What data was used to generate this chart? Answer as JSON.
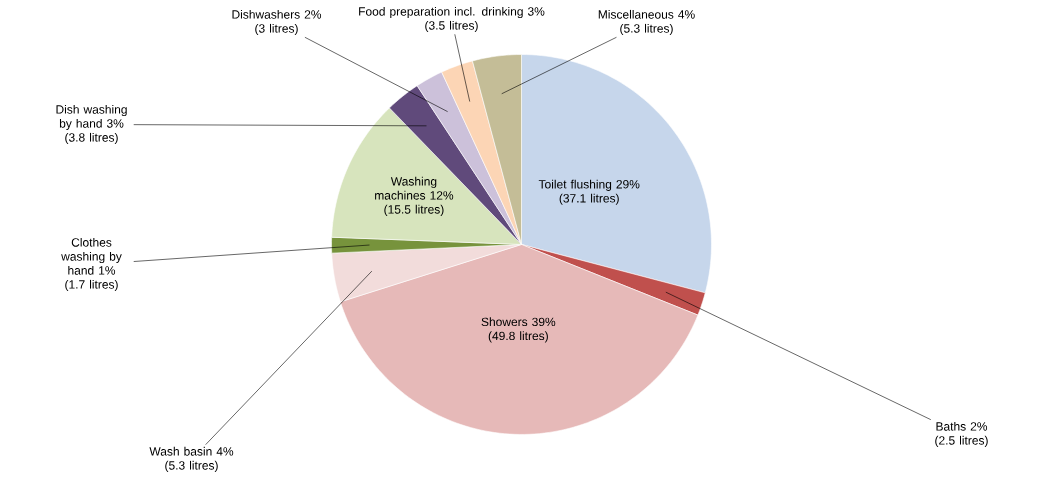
{
  "chart_data": {
    "type": "pie",
    "categories": [
      "Toilet flushing 29%",
      "Baths 2%",
      "Showers 39%",
      "Wash basin 4%",
      "Clothes washing by hand 1%",
      "Washing machines 12%",
      "Dish washing by hand 3%",
      "Dishwashers 2%",
      "Food preparation incl. drinking 3%",
      "Miscellaneous 4%"
    ],
    "values": [
      37.1,
      2.5,
      49.8,
      5.3,
      1.7,
      15.5,
      3.8,
      3,
      3.5,
      5.3
    ],
    "value_labels": [
      "(37.1 litres)",
      "(2.5 litres)",
      "(49.8 litres)",
      "(5.3 litres)",
      "(1.7 litres)",
      "(15.5 litres)",
      "(3.8 litres)",
      "(3 litres)",
      "(3.5 litres)",
      "(5.3 litres)"
    ],
    "colors": [
      "#c6d6eb",
      "#c0504d",
      "#e6b9b8",
      "#f2dcdb",
      "#77933c",
      "#d7e4bd",
      "#604a7b",
      "#ccc1da",
      "#fcd5b5",
      "#c4bd97"
    ]
  }
}
